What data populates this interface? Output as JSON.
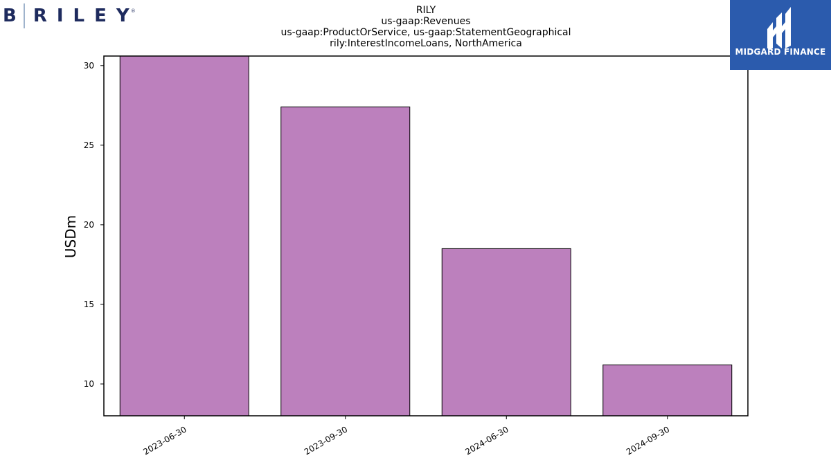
{
  "brand": {
    "letter": "B",
    "name": "RILEY",
    "mark": "®"
  },
  "badge": {
    "name": "MIDGARD FINANCE",
    "icon": "midgard-logo-icon",
    "color": "#2b5bad"
  },
  "chart_data": {
    "type": "bar",
    "title_lines": [
      "RILY",
      "us-gaap:Revenues",
      "us-gaap:ProductOrService, us-gaap:StatementGeographical",
      "rily:InterestIncomeLoans, NorthAmerica"
    ],
    "ylabel": "USDm",
    "xlabel": "",
    "categories": [
      "2023-06-30",
      "2023-09-30",
      "2024-06-30",
      "2024-09-30"
    ],
    "values": [
      30.6,
      27.4,
      18.5,
      11.2
    ],
    "ylim": [
      8,
      30.6
    ],
    "yticks": [
      10,
      15,
      20,
      25,
      30
    ],
    "bar_color": "#bc80bd",
    "grid": false,
    "legend": "none"
  }
}
